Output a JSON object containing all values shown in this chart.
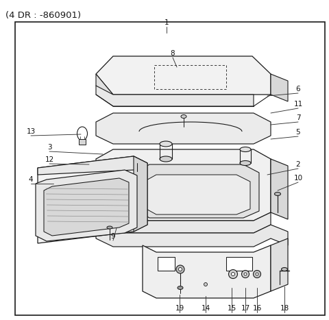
{
  "title": "(4 DR : -860901)",
  "title_fontsize": 9.5,
  "background_color": "#ffffff",
  "line_color": "#1a1a1a",
  "text_color": "#1a1a1a",
  "fig_width": 4.8,
  "fig_height": 4.67,
  "dpi": 100,
  "border": [
    22,
    32,
    452,
    428
  ],
  "leaders": [
    [
      "1",
      243,
      33,
      243,
      48
    ],
    [
      "8",
      252,
      78,
      258,
      98
    ],
    [
      "6",
      435,
      130,
      390,
      140
    ],
    [
      "11",
      435,
      152,
      395,
      165
    ],
    [
      "7",
      435,
      172,
      395,
      182
    ],
    [
      "5",
      435,
      193,
      395,
      203
    ],
    [
      "2",
      435,
      240,
      390,
      255
    ],
    [
      "10",
      435,
      260,
      405,
      278
    ],
    [
      "3",
      72,
      215,
      150,
      225
    ],
    [
      "12",
      72,
      233,
      130,
      240
    ],
    [
      "4",
      45,
      262,
      78,
      268
    ],
    [
      "9",
      165,
      345,
      170,
      333
    ],
    [
      "13",
      45,
      192,
      118,
      196
    ],
    [
      "19",
      262,
      450,
      262,
      430
    ],
    [
      "14",
      300,
      450,
      300,
      432
    ],
    [
      "15",
      338,
      450,
      338,
      420
    ],
    [
      "17",
      358,
      450,
      358,
      420
    ],
    [
      "16",
      375,
      450,
      375,
      420
    ],
    [
      "18",
      415,
      450,
      415,
      418
    ]
  ]
}
